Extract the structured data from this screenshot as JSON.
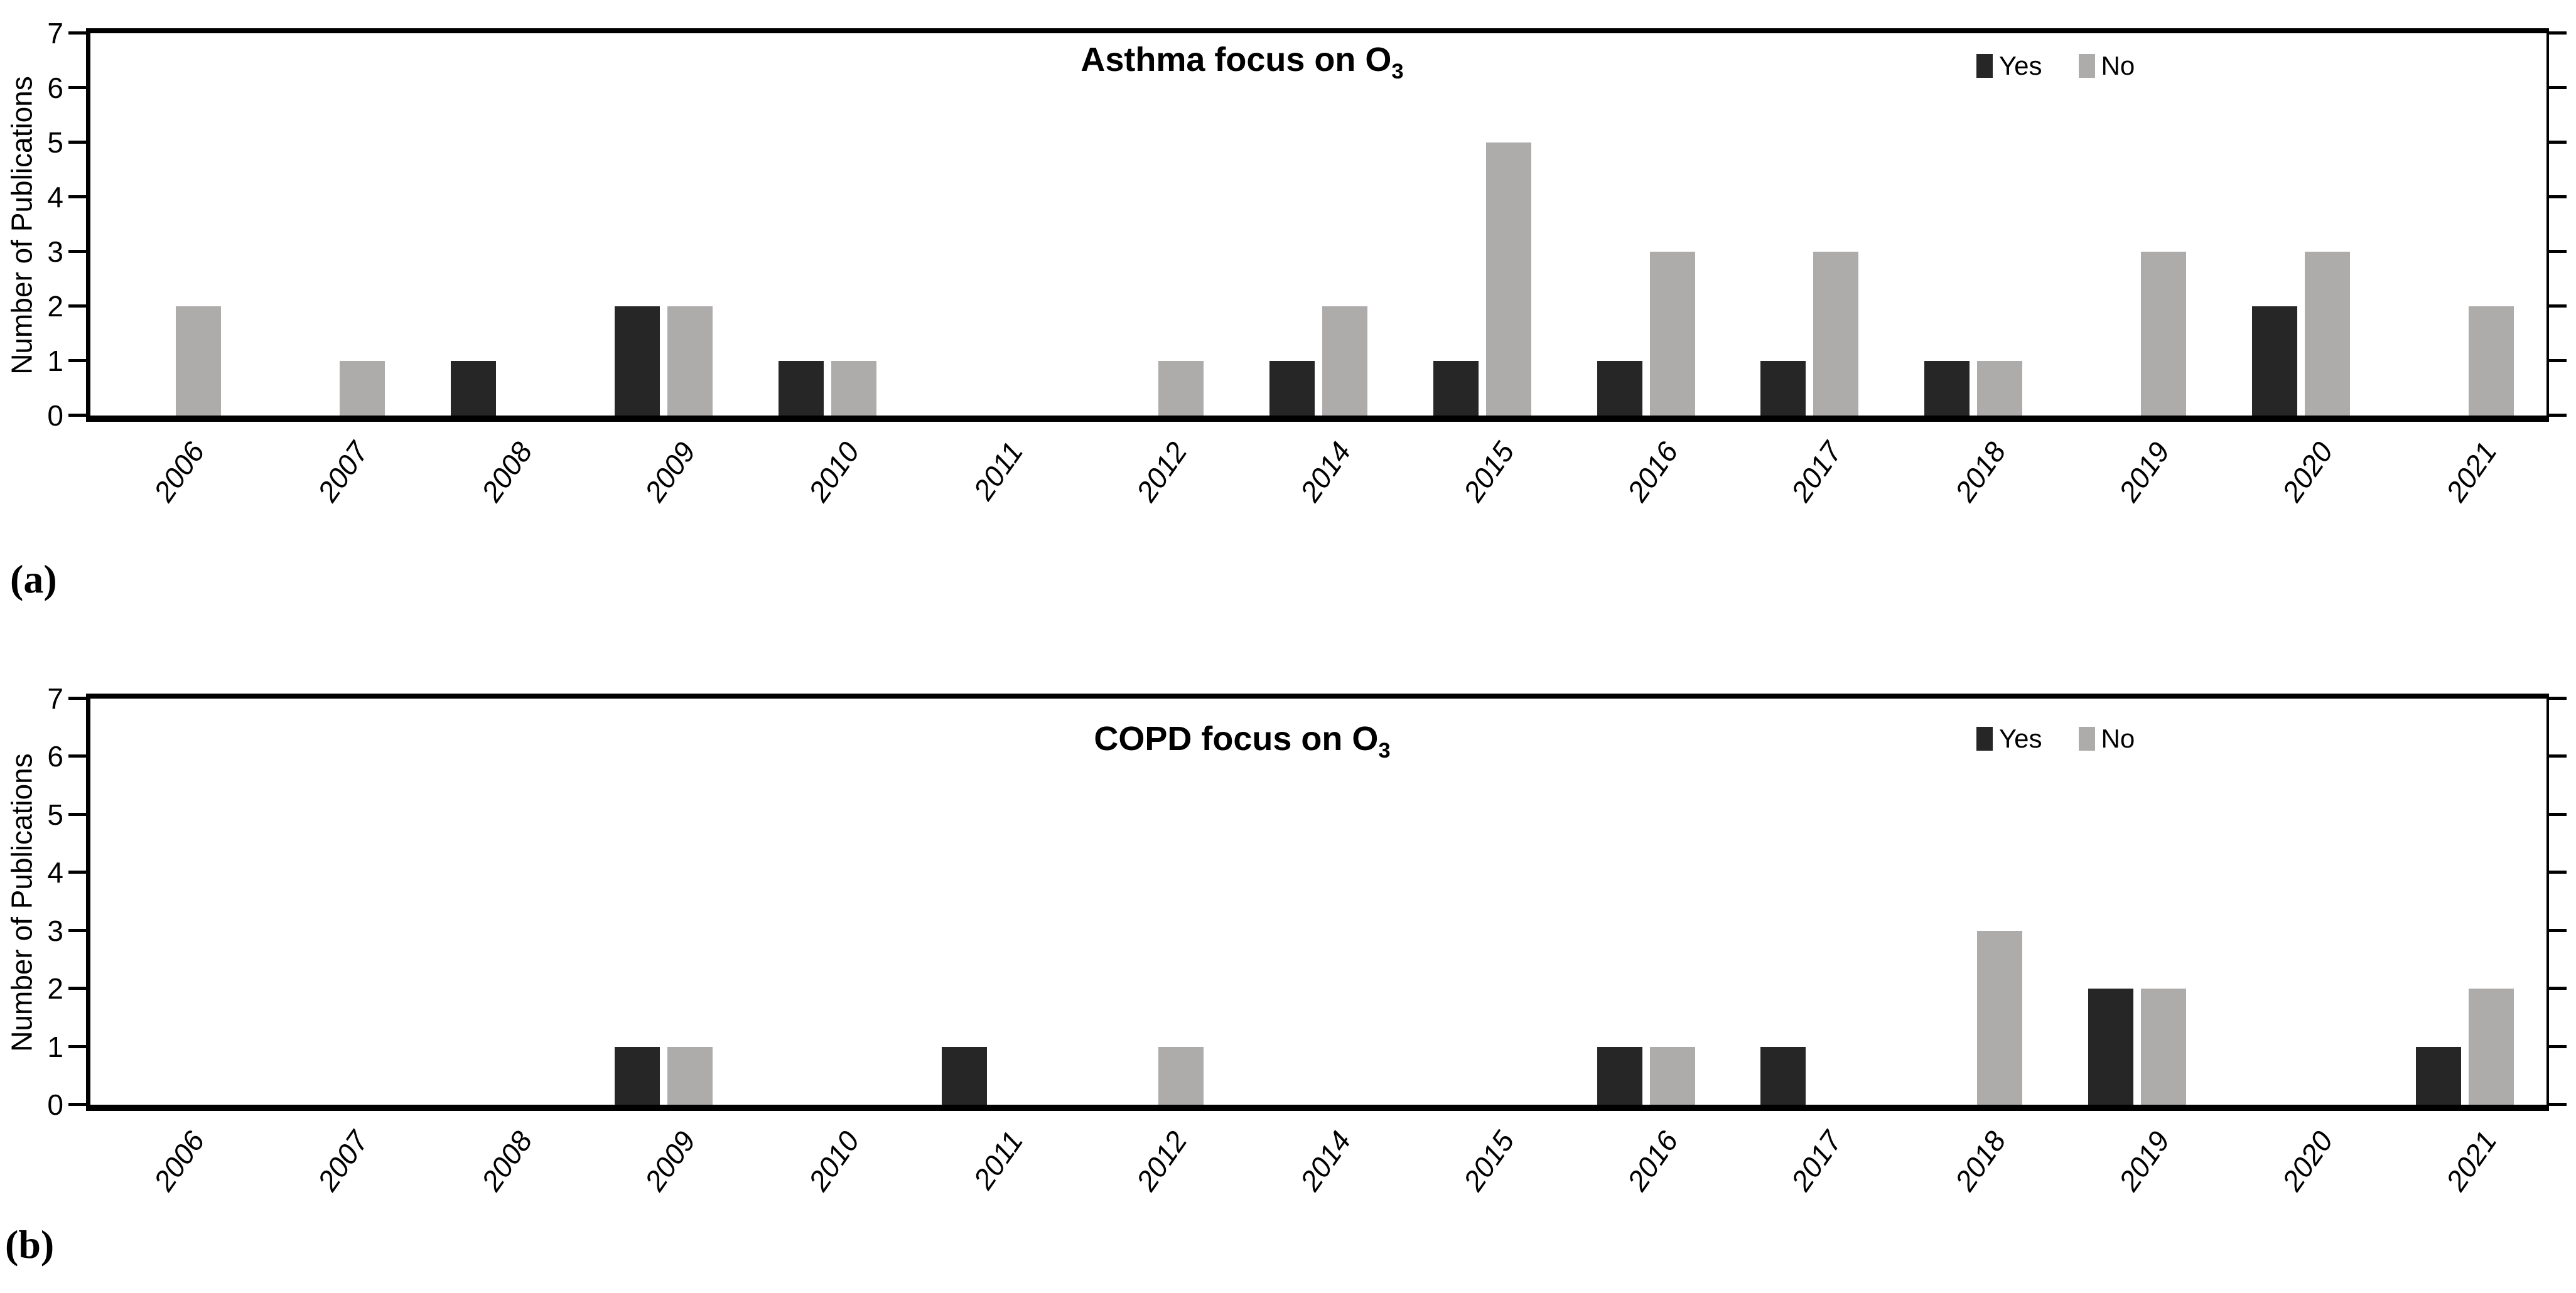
{
  "colors": {
    "yes": "#262626",
    "no": "#aeabab",
    "axis": "#000000",
    "background": "#ffffff"
  },
  "chart_data": [
    {
      "type": "bar",
      "panel": "(a)",
      "title": "Asthma focus on O",
      "title_subscript": "3",
      "ylabel": "Number of Publications",
      "ylim": [
        0,
        7
      ],
      "y_ticks": [
        0,
        1,
        2,
        3,
        4,
        5,
        6,
        7
      ],
      "grid": false,
      "legend_position": "top-right-inside",
      "categories": [
        "2006",
        "2007",
        "2008",
        "2009",
        "2010",
        "2011",
        "2012",
        "2014",
        "2015",
        "2016",
        "2017",
        "2018",
        "2019",
        "2020",
        "2021"
      ],
      "series": [
        {
          "name": "Yes",
          "color": "#262626",
          "values": [
            0,
            0,
            1,
            2,
            1,
            0,
            0,
            1,
            1,
            1,
            1,
            1,
            0,
            2,
            0
          ]
        },
        {
          "name": "No",
          "color": "#aeabab",
          "values": [
            2,
            1,
            0,
            2,
            1,
            0,
            1,
            2,
            5,
            3,
            3,
            1,
            3,
            3,
            2
          ]
        }
      ]
    },
    {
      "type": "bar",
      "panel": "(b)",
      "title": "COPD focus on O",
      "title_subscript": "3",
      "ylabel": "Number of Publications",
      "ylim": [
        0,
        7
      ],
      "y_ticks": [
        0,
        1,
        2,
        3,
        4,
        5,
        6,
        7
      ],
      "grid": false,
      "legend_position": "top-right-inside",
      "categories": [
        "2006",
        "2007",
        "2008",
        "2009",
        "2010",
        "2011",
        "2012",
        "2014",
        "2015",
        "2016",
        "2017",
        "2018",
        "2019",
        "2020",
        "2021"
      ],
      "series": [
        {
          "name": "Yes",
          "color": "#262626",
          "values": [
            0,
            0,
            0,
            1,
            0,
            1,
            0,
            0,
            0,
            1,
            1,
            0,
            2,
            0,
            1
          ]
        },
        {
          "name": "No",
          "color": "#aeabab",
          "values": [
            0,
            0,
            0,
            1,
            0,
            0,
            1,
            0,
            0,
            1,
            0,
            3,
            2,
            0,
            2
          ]
        }
      ]
    }
  ]
}
